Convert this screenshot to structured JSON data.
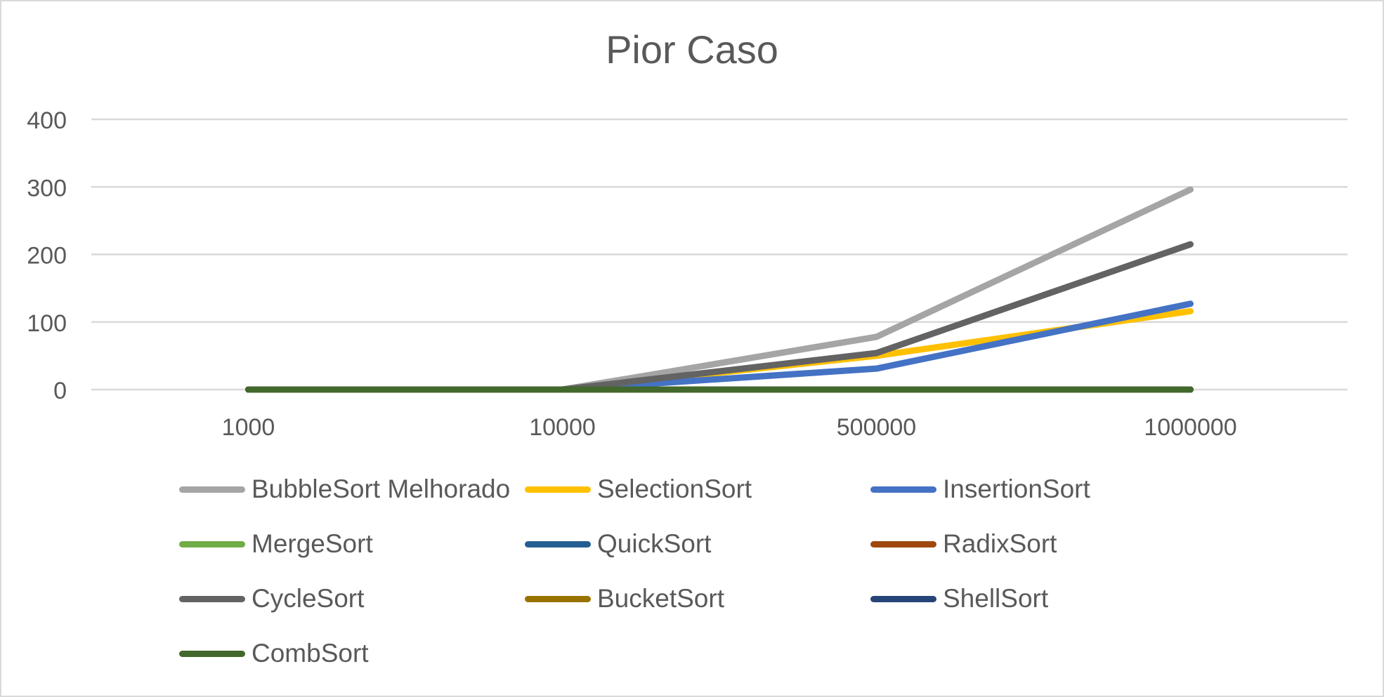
{
  "chart_data": {
    "type": "line",
    "title": "Pior Caso",
    "xlabel": "",
    "ylabel": "",
    "categories": [
      "1000",
      "10000",
      "500000",
      "1000000"
    ],
    "ylim": [
      0,
      400
    ],
    "yticks": [
      "0",
      "100",
      "200",
      "300",
      "400"
    ],
    "grid": true,
    "legend_position": "bottom",
    "series": [
      {
        "name": "BubbleSort Melhorado",
        "color": "#a5a5a5",
        "values": [
          0,
          0,
          78,
          296
        ]
      },
      {
        "name": "SelectionSort",
        "color": "#ffc000",
        "values": [
          0,
          0,
          50,
          116
        ]
      },
      {
        "name": "InsertionSort",
        "color": "#4472c4",
        "values": [
          0,
          0,
          31,
          127
        ]
      },
      {
        "name": "MergeSort",
        "color": "#70ad47",
        "values": [
          0,
          0,
          0,
          0
        ]
      },
      {
        "name": "QuickSort",
        "color": "#255e91",
        "values": [
          0,
          0,
          0,
          0
        ]
      },
      {
        "name": "RadixSort",
        "color": "#9e480e",
        "values": [
          0,
          0,
          0,
          0
        ]
      },
      {
        "name": "CycleSort",
        "color": "#636363",
        "values": [
          0,
          0,
          54,
          215
        ]
      },
      {
        "name": "BucketSort",
        "color": "#997300",
        "values": [
          0,
          0,
          0,
          0
        ]
      },
      {
        "name": "ShellSort",
        "color": "#264478",
        "values": [
          0,
          0,
          0,
          0
        ]
      },
      {
        "name": "CombSort",
        "color": "#43682b",
        "values": [
          0,
          0,
          0,
          0
        ]
      }
    ]
  }
}
